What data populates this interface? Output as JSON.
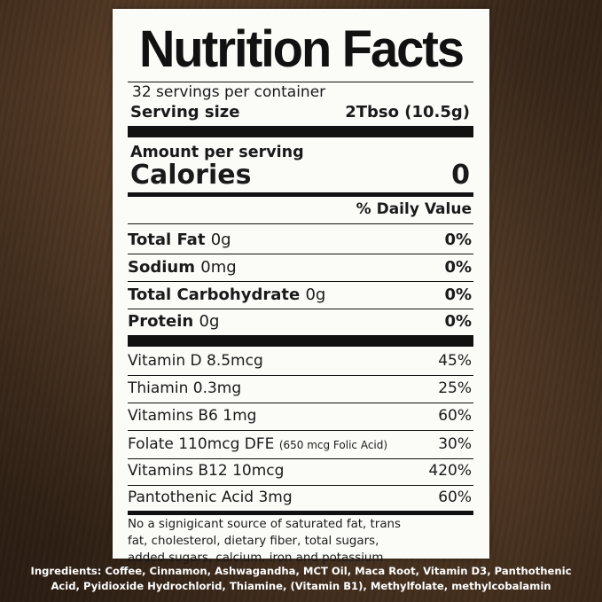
{
  "label": {
    "title": "Nutrition Facts",
    "servings_per_container": "32 servings per container",
    "serving_size_label": "Serving size",
    "serving_size_value": "2Tbso (10.5g)",
    "amount_per_serving": "Amount per serving",
    "calories_label": "Calories",
    "calories_value": "0",
    "daily_value_header": "% Daily Value",
    "nutrients": [
      {
        "name": "Total Fat",
        "amount": "0g",
        "dv": "0%"
      },
      {
        "name": "Sodium",
        "amount": "0mg",
        "dv": "0%"
      },
      {
        "name": "Total Carbohydrate",
        "amount": "0g",
        "dv": "0%"
      },
      {
        "name": "Protein",
        "amount": "0g",
        "dv": "0%"
      }
    ],
    "vitamins": [
      {
        "name": "Vitamin D 8.5mcg",
        "note": "",
        "dv": "45%"
      },
      {
        "name": "Thiamin 0.3mg",
        "note": "",
        "dv": "25%"
      },
      {
        "name": "Vitamins B6 1mg",
        "note": "",
        "dv": "60%"
      },
      {
        "name": "Folate 110mcg DFE",
        "note": "(650 mcg Folic Acid)",
        "dv": "30%"
      },
      {
        "name": "Vitamins B12 10mcg",
        "note": "",
        "dv": "420%"
      },
      {
        "name": "Pantothenic Acid 3mg",
        "note": "",
        "dv": "60%"
      }
    ],
    "footnote_lines": [
      "No a signigicant source of saturated fat, trans",
      "fat, cholesterol, dietary fiber, total sugars,",
      "added sugars, calcium, iron and potassium"
    ]
  },
  "ingredients_lines": [
    "Ingredients: Coffee, Cinnamon, Ashwagandha, MCT Oil, Maca Root, Vitamin D3,  Panthothenic",
    "Acid, Pyidioxide Hydrochlorid, Thiamine, (Vitamin B1), Methylfolate, methylcobalamin"
  ]
}
